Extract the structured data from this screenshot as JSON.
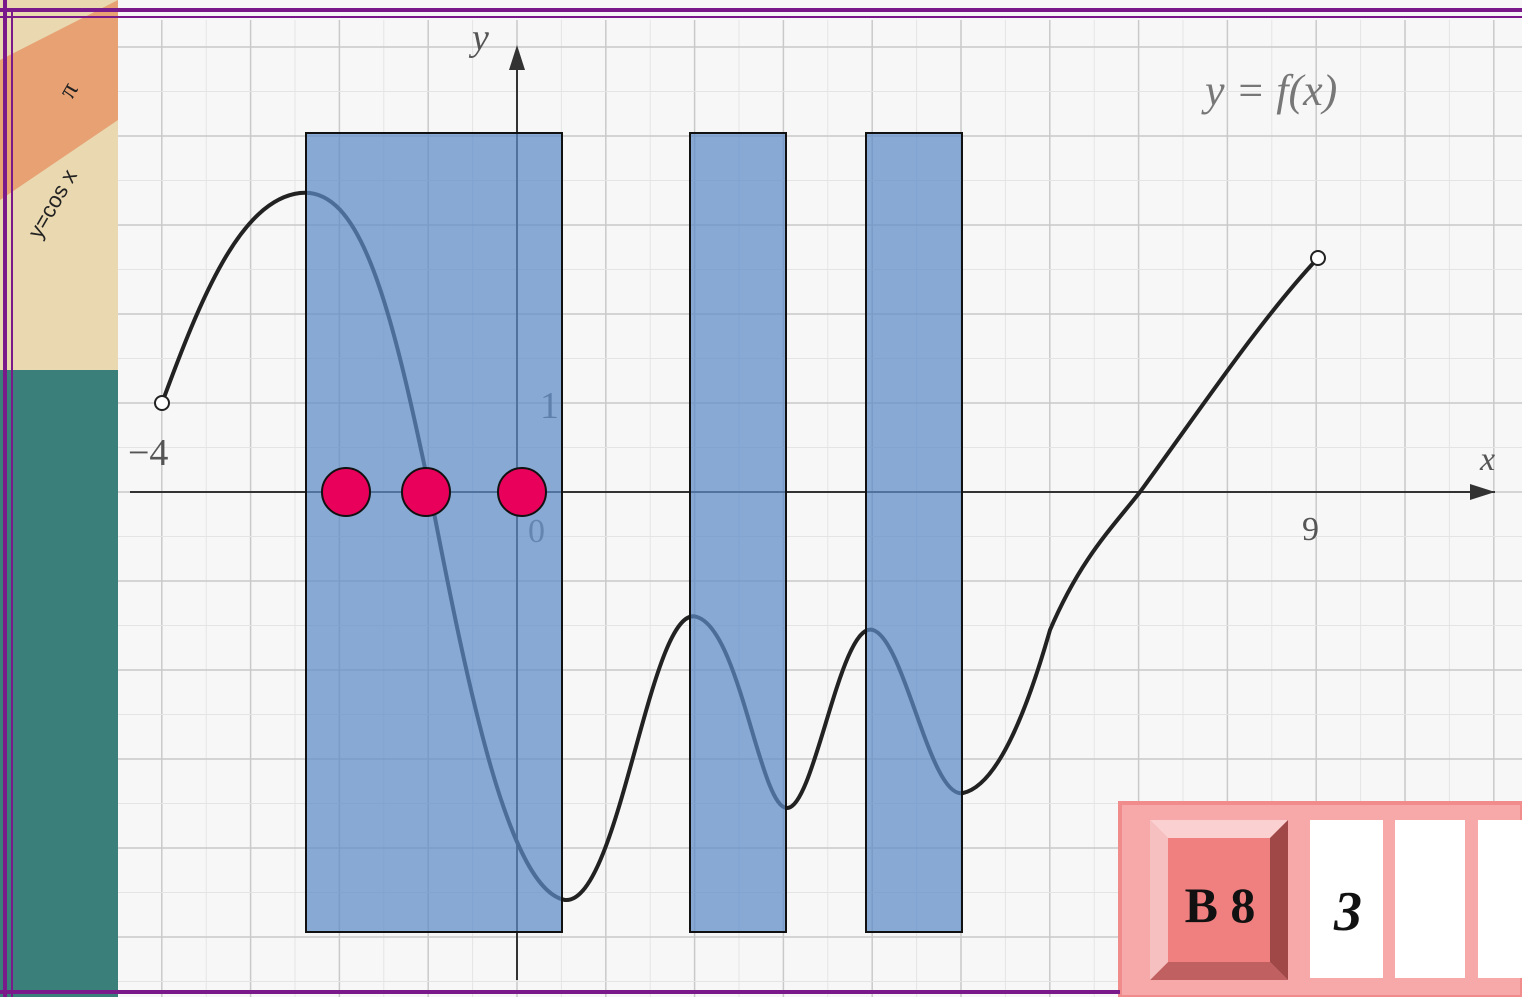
{
  "axes": {
    "x_label": "x",
    "y_label": "y",
    "origin": "0",
    "x_min_label": "−4",
    "x_max_label": "9",
    "y_unit_label": "1"
  },
  "function_label": "y = f(x)",
  "answer": {
    "task": "B 8",
    "value": "3"
  },
  "decoration": {
    "label_pi": "π",
    "label_cos": "y=cos x"
  }
}
